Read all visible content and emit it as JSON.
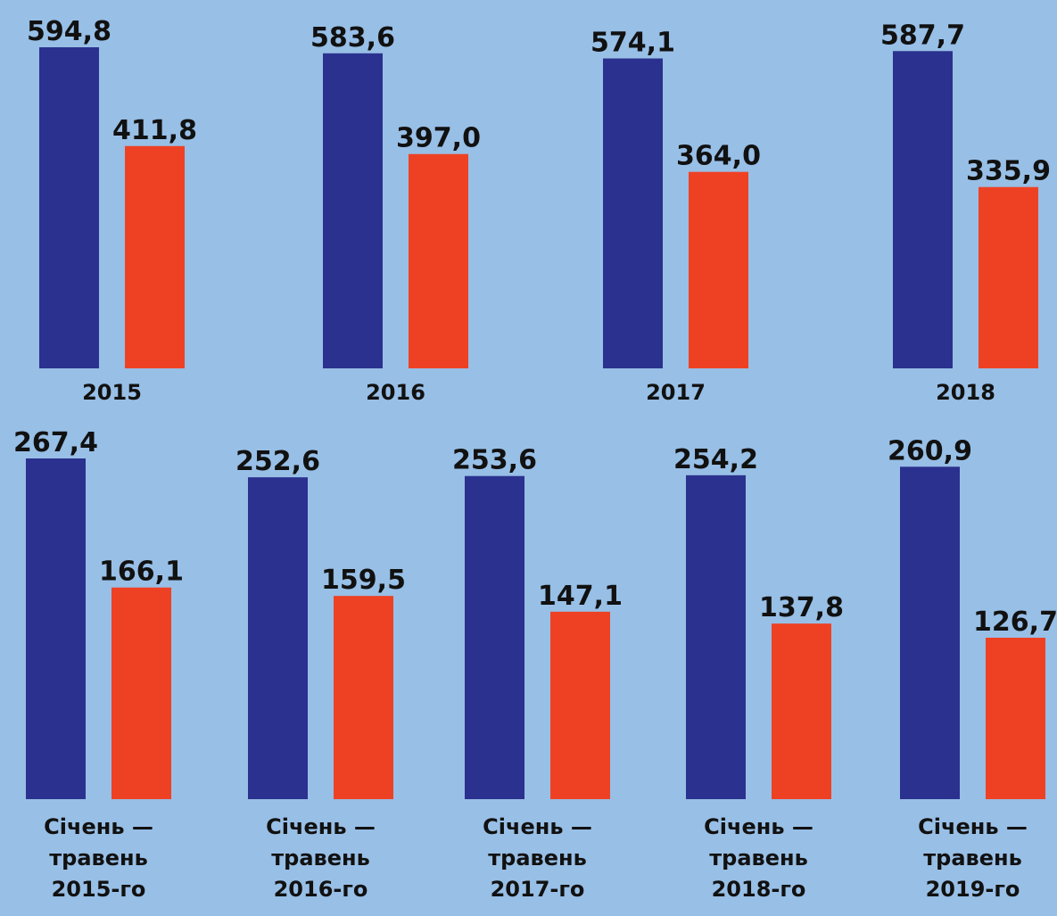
{
  "chart_data": [
    {
      "type": "bar",
      "categories": [
        "2015",
        "2016",
        "2017",
        "2018"
      ],
      "series": [
        {
          "values": [
            594.8,
            583.6,
            574.1,
            587.7
          ]
        },
        {
          "values": [
            411.8,
            397.0,
            364.0,
            335.9
          ]
        }
      ],
      "value_labels": [
        [
          "594,8",
          "583,6",
          "574,1",
          "587,7"
        ],
        [
          "411,8",
          "397,0",
          "364,0",
          "335,9"
        ]
      ],
      "ylim": [
        0,
        594.8
      ],
      "grid": false,
      "legend": "none"
    },
    {
      "type": "bar",
      "categories": [
        [
          "Січень —",
          "травень",
          "2015-го"
        ],
        [
          "Січень —",
          "травень",
          "2016-го"
        ],
        [
          "Січень —",
          "травень",
          "2017-го"
        ],
        [
          "Січень —",
          "травень",
          "2018-го"
        ],
        [
          "Січень —",
          "травень",
          "2019-го"
        ]
      ],
      "series": [
        {
          "values": [
            267.4,
            252.6,
            253.6,
            254.2,
            260.9
          ]
        },
        {
          "values": [
            166.1,
            159.5,
            147.1,
            137.8,
            126.7
          ]
        }
      ],
      "value_labels": [
        [
          "267,4",
          "252,6",
          "253,6",
          "254,2",
          "260,9"
        ],
        [
          "166,1",
          "159,5",
          "147,1",
          "137,8",
          "126,7"
        ]
      ],
      "ylim": [
        0,
        267.4
      ],
      "grid": false,
      "legend": "none"
    }
  ],
  "colors": {
    "background": "#98bfe6",
    "series_1": "#2b318e",
    "series_2": "#ee4124",
    "text": "#111111"
  }
}
